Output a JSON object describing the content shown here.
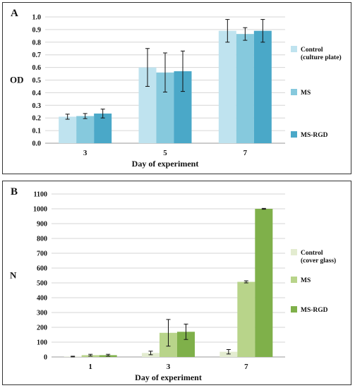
{
  "chart_data": [
    {
      "type": "bar",
      "panel_label": "A",
      "categories": [
        "3",
        "5",
        "7"
      ],
      "xlabel": "Day of experiment",
      "ylabel": "OD",
      "ylim": [
        0,
        1.0
      ],
      "yticks": [
        "0.0",
        "0.1",
        "0.2",
        "0.3",
        "0.4",
        "0.5",
        "0.6",
        "0.7",
        "0.8",
        "0.9",
        "1.0"
      ],
      "grid": true,
      "legend_position": "right",
      "series": [
        {
          "name": "Control (culture plate)",
          "name_lines": [
            "Control",
            "(culture plate)"
          ],
          "color": "#bfe3ef",
          "values": [
            0.21,
            0.6,
            0.89
          ],
          "errors": [
            0.02,
            0.15,
            0.09
          ]
        },
        {
          "name": "MS",
          "name_lines": [
            "MS"
          ],
          "color": "#86c9dd",
          "values": [
            0.215,
            0.56,
            0.865
          ],
          "errors": [
            0.02,
            0.155,
            0.05
          ]
        },
        {
          "name": "MS-RGD",
          "name_lines": [
            "MS-RGD"
          ],
          "color": "#4aa8c8",
          "values": [
            0.235,
            0.57,
            0.89
          ],
          "errors": [
            0.035,
            0.16,
            0.09
          ]
        }
      ]
    },
    {
      "type": "bar",
      "panel_label": "B",
      "categories": [
        "1",
        "3",
        "7"
      ],
      "xlabel": "Day of experiment",
      "ylabel": "N",
      "ylim": [
        0,
        1100
      ],
      "yticks": [
        "0",
        "100",
        "200",
        "300",
        "400",
        "500",
        "600",
        "700",
        "800",
        "900",
        "1000",
        "1100"
      ],
      "grid": true,
      "legend_position": "right",
      "series": [
        {
          "name": "Control (cover glass)",
          "name_lines": [
            "Control",
            "(cover glass)"
          ],
          "color": "#e3ecd0",
          "values": [
            2,
            27,
            35
          ],
          "errors": [
            3,
            12,
            15
          ]
        },
        {
          "name": "MS",
          "name_lines": [
            "MS"
          ],
          "color": "#b8d48a",
          "values": [
            12,
            163,
            507
          ],
          "errors": [
            6,
            90,
            7
          ]
        },
        {
          "name": "MS-RGD",
          "name_lines": [
            "MS-RGD"
          ],
          "color": "#7fb04a",
          "values": [
            12,
            170,
            1000
          ],
          "errors": [
            6,
            52,
            3
          ]
        }
      ]
    }
  ]
}
